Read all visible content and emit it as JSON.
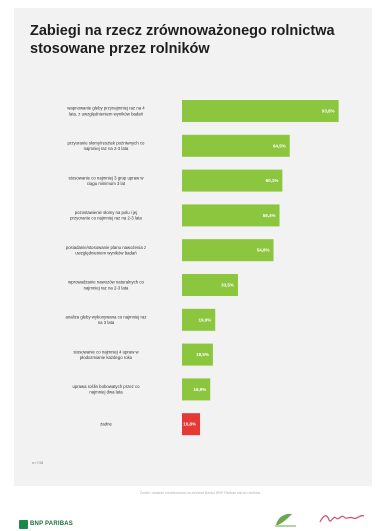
{
  "title": "Zabiegi na rzecz zrównoważonego rolnictwa stosowane przez rolników",
  "axis_note": "n=748",
  "source_note": "Źródło: badanie zrealizowane na zlecenie Banku BNP Paribas wśród rolników",
  "footer": {
    "brand": "BNP PARIBAS"
  },
  "colors": {
    "bar": "#8cc63f",
    "highlight": "#e53935",
    "background": "#f2f2f2"
  },
  "chart_data": {
    "type": "bar",
    "orientation": "horizontal",
    "categories": [
      "wapnowanie gleby przynajmniej raz na 4 lata, z uwzględnieniem wyników badań",
      "przyoranie słomy/resztek pożniwnych co najmniej raz na 2-3 lata",
      "stosowanie co najmniej 3 grup upraw w ciągu minimum 3 lat",
      "pozostawienie słomy na polu i jej przyoranie co najmniej raz na 2-3 lata",
      "posiadanie/stosowanie planu nawożenia z uwzględnieniem wyników badań",
      "wprowadzanie nawozów naturalnych co najmniej raz na 2-3 lata",
      "analiza gleby wykonywana co najmniej raz na 3 lata",
      "stosowanie co najmniej 4 upraw w płodozmianie każdego roku",
      "uprawa roślin bobowatych przez co najmniej dwa lata",
      "żadne"
    ],
    "values": [
      93.8,
      64.5,
      60.1,
      58.4,
      54.8,
      33.5,
      19.9,
      18.5,
      16.9,
      10.8
    ],
    "value_labels": [
      "93,8%",
      "64,5%",
      "60,1%",
      "58,4%",
      "54,8%",
      "33,5%",
      "19,9%",
      "18,5%",
      "16,9%",
      "10,8%"
    ],
    "highlight_index": 9,
    "xlim": [
      0,
      100
    ],
    "grid": false,
    "legend": "none"
  }
}
